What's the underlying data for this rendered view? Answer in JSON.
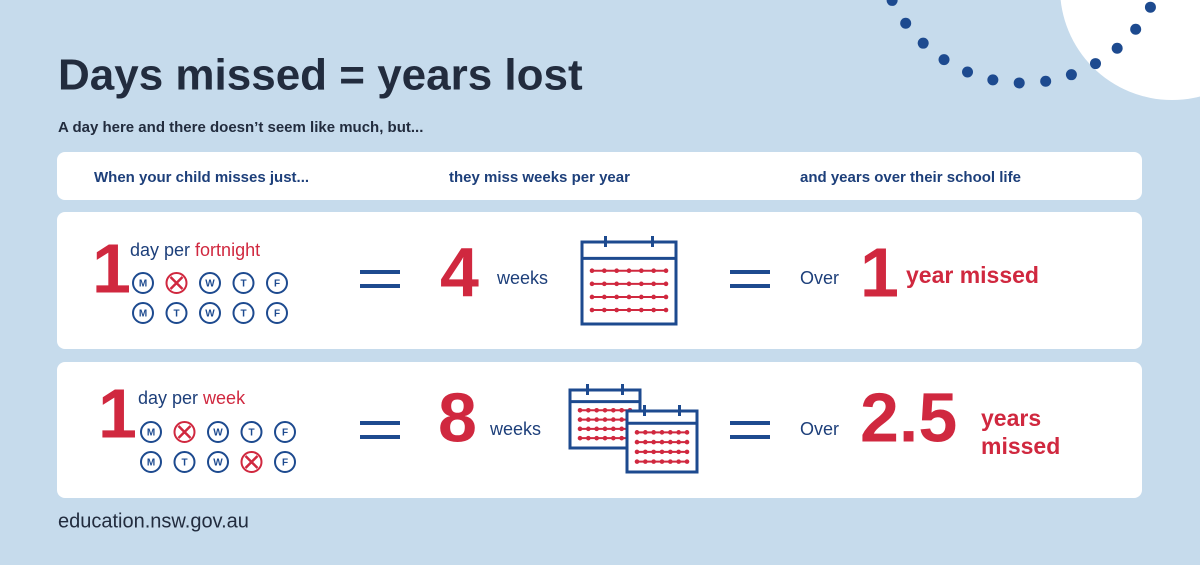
{
  "header": {
    "title": "Days missed = years lost",
    "subtitle": "A day here and there doesn’t seem like much, but..."
  },
  "columns": [
    "When your child misses just...",
    "they miss weeks per year",
    "and years over their school life"
  ],
  "rows": [
    {
      "count": 1,
      "frequency": "day per",
      "period": "fortnight",
      "days": [
        [
          "M",
          null,
          "W",
          "T",
          "F"
        ],
        [
          "M",
          "T",
          "W",
          "T",
          "F"
        ]
      ],
      "weeks": 4,
      "weeks_unit": "weeks",
      "prefix": "Over",
      "years": 1,
      "years_unit": [
        "year missed"
      ]
    },
    {
      "count": 1,
      "frequency": "day per",
      "period": "week",
      "days": [
        [
          "M",
          null,
          "W",
          "T",
          "F"
        ],
        [
          "M",
          "T",
          "W",
          null,
          "F"
        ]
      ],
      "weeks": 8,
      "weeks_unit": "weeks",
      "prefix": "Over",
      "years": 2.5,
      "years_unit": [
        "years",
        "missed"
      ]
    }
  ],
  "footer": "education.nsw.gov.au"
}
